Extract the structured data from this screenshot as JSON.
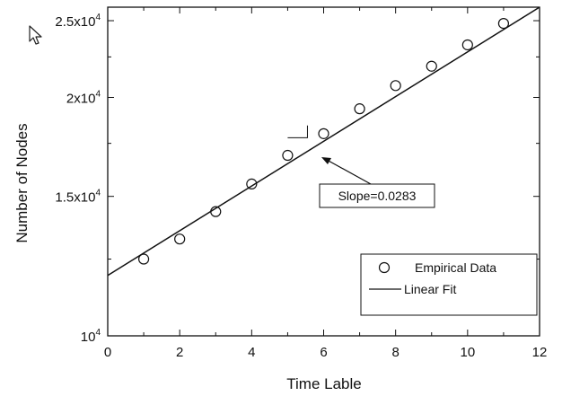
{
  "chart_data": {
    "type": "scatter",
    "xlabel": "Time Lable",
    "ylabel": "Number of Nodes",
    "xlim": [
      0,
      12
    ],
    "ylim": [
      10000,
      26000
    ],
    "yscale": "log",
    "grid": false,
    "legend_placement": "lower-right",
    "x_ticks": [
      "0",
      "2",
      "4",
      "6",
      "8",
      "10",
      "12"
    ],
    "y_ticks": [
      {
        "value": 10000,
        "mantissa": "10",
        "exponent": "4"
      },
      {
        "value": 15000,
        "mantissa": "1.5x10",
        "exponent": "4"
      },
      {
        "value": 20000,
        "mantissa": "2x10",
        "exponent": "4"
      },
      {
        "value": 25000,
        "mantissa": "2.5x10",
        "exponent": "4"
      }
    ],
    "series": [
      {
        "name": "Empirical Data",
        "marker": "open-circle",
        "x": [
          1,
          2,
          3,
          4,
          5,
          6,
          7,
          8,
          9,
          10,
          11
        ],
        "y": [
          12500,
          13250,
          14350,
          15550,
          16900,
          18000,
          19350,
          20700,
          21900,
          23300,
          24800
        ]
      },
      {
        "name": "Linear Fit",
        "style": "line",
        "x": [
          0,
          12
        ],
        "y": [
          11920,
          26000
        ]
      }
    ],
    "annotation": {
      "text": "Slope=0.0283",
      "points_to_x": 5.6
    },
    "colors": {
      "ink": "#111111",
      "background": "#ffffff"
    }
  },
  "ui": {
    "cursor_icon": "mouse-pointer-icon"
  }
}
